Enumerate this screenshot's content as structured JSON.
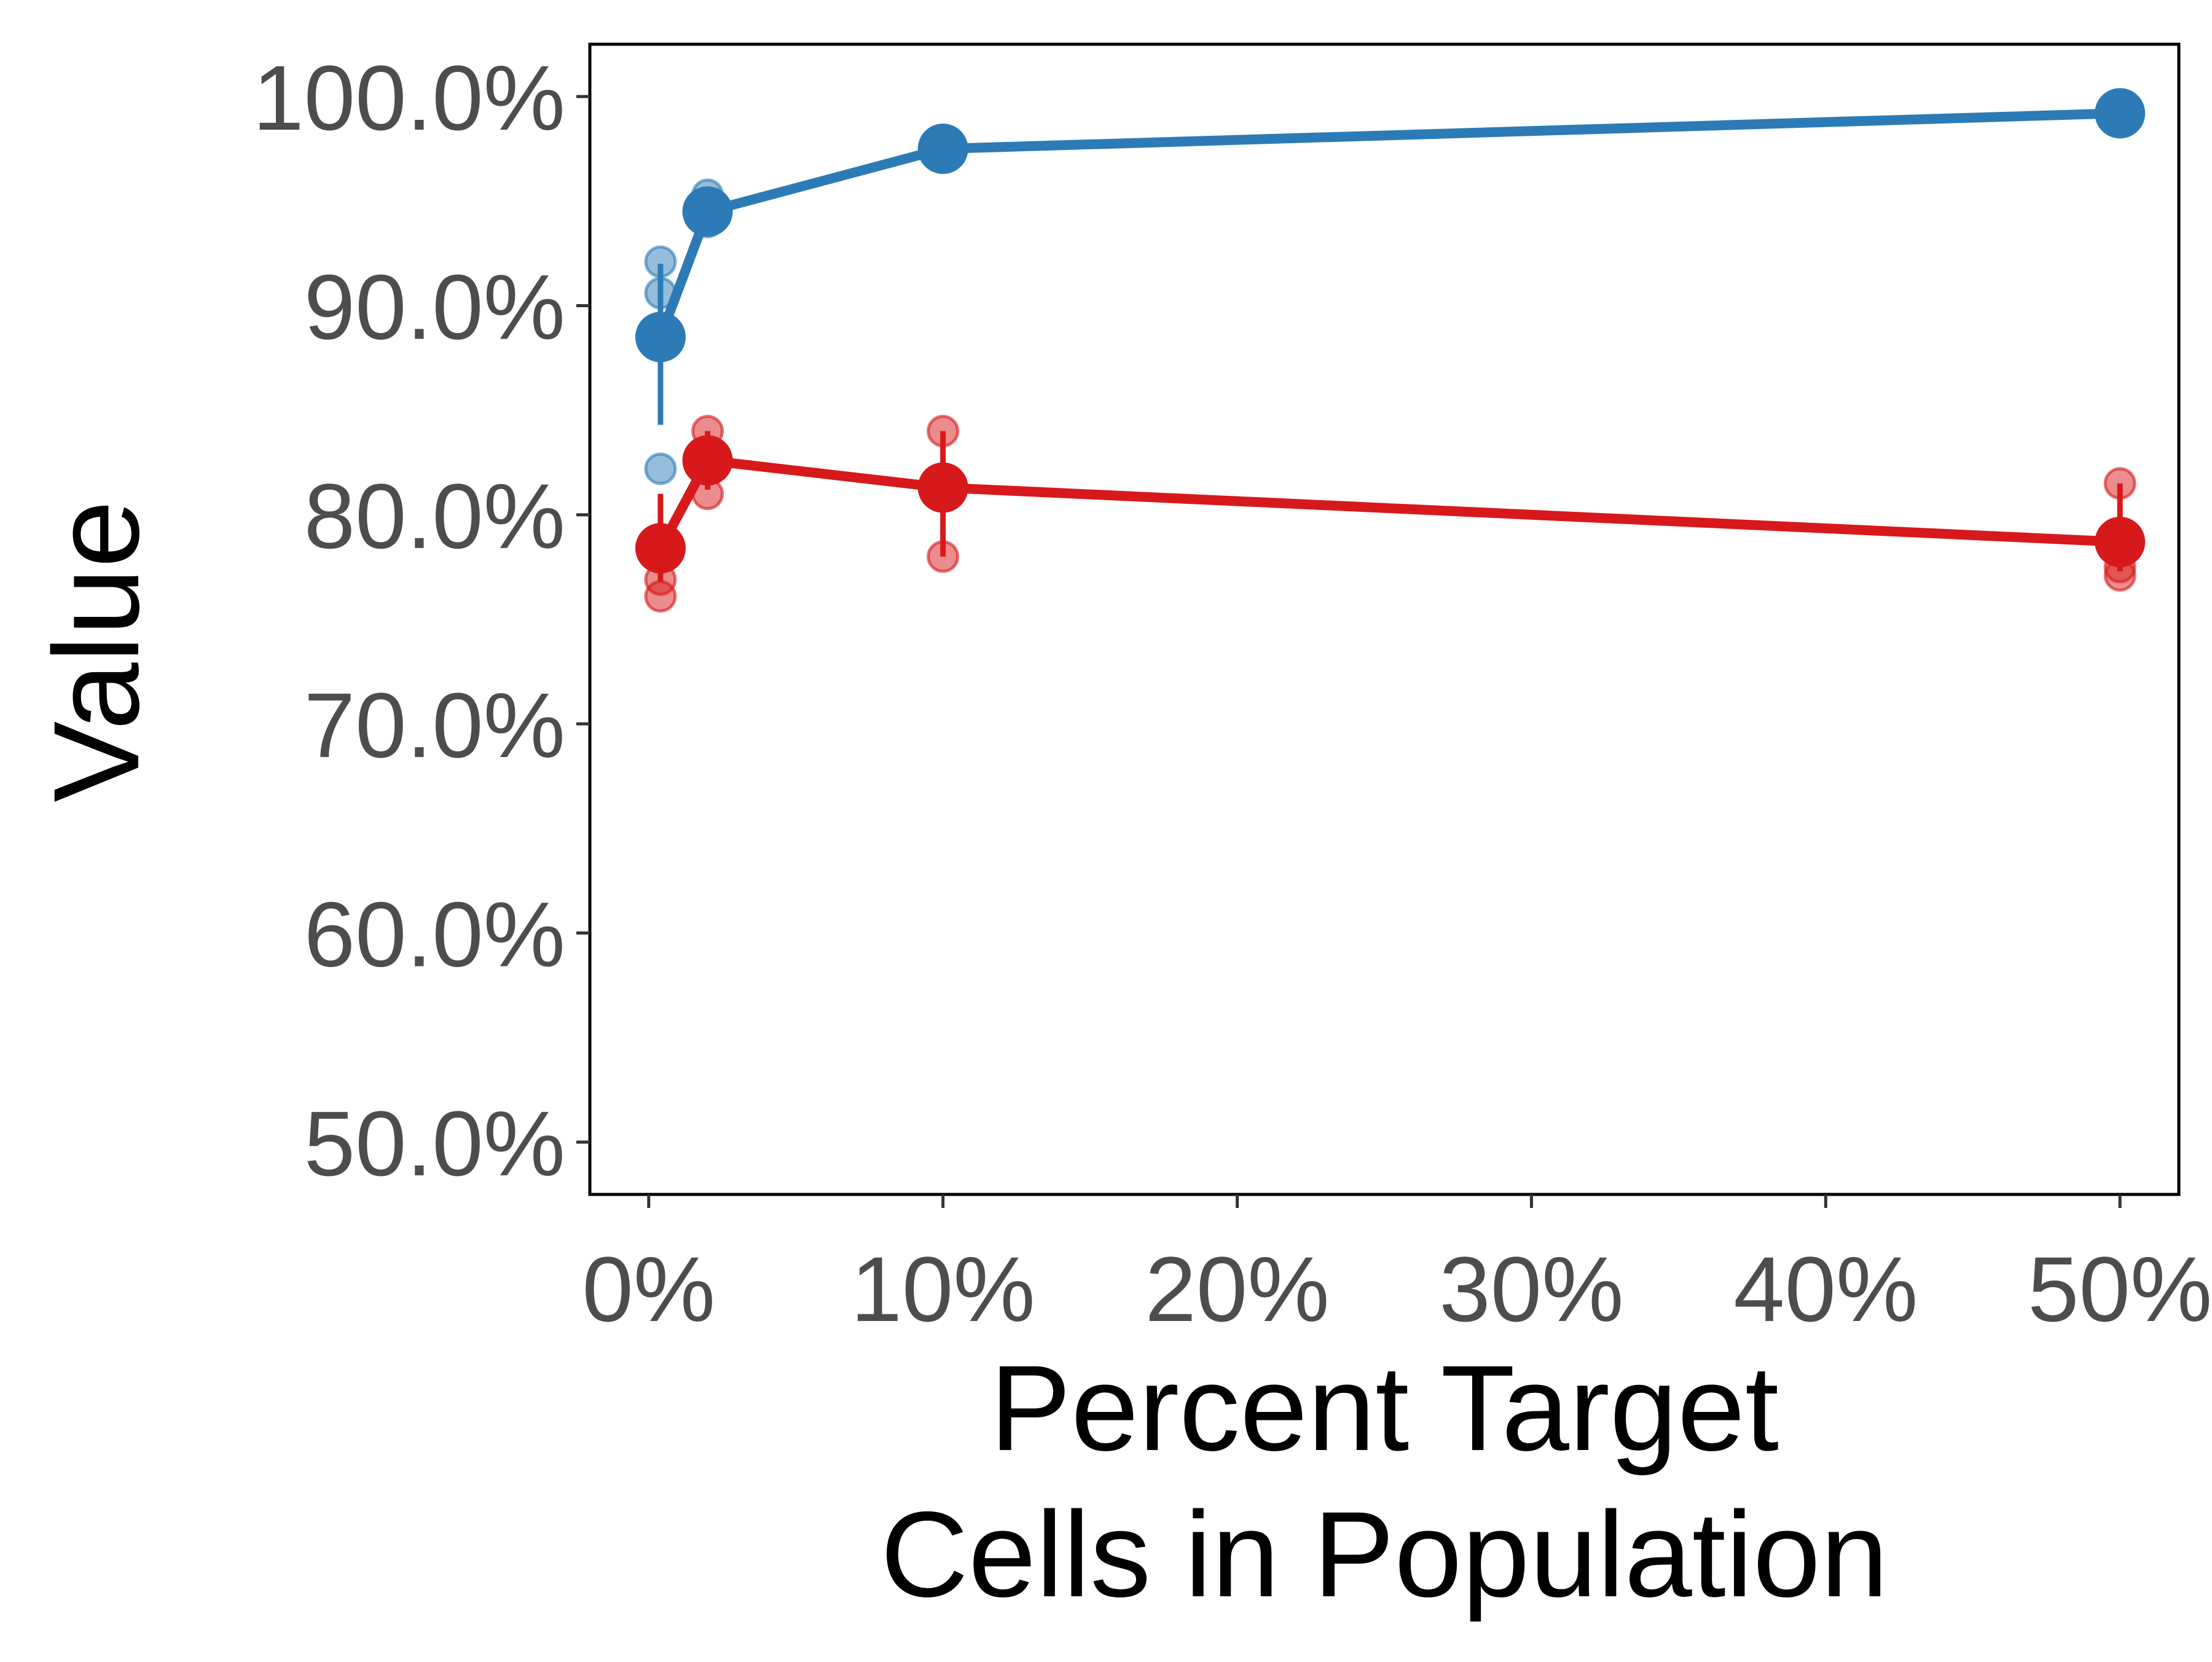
{
  "chart_data": {
    "type": "line",
    "xlabel": [
      "Percent Target",
      "Cells in Population"
    ],
    "ylabel": "Value",
    "xlim": [
      -0.02,
      0.52
    ],
    "ylim": [
      0.475,
      1.025
    ],
    "x_ticks": [
      0,
      0.1,
      0.2,
      0.3,
      0.4,
      0.5
    ],
    "x_tick_labels": [
      "0%",
      "10%",
      "20%",
      "30%",
      "40%",
      "50%"
    ],
    "y_ticks": [
      0.5,
      0.6,
      0.7,
      0.8,
      0.9,
      1.0
    ],
    "y_tick_labels": [
      "50.0%",
      "60.0%",
      "70.0%",
      "80.0%",
      "90.0%",
      "100.0%"
    ],
    "grid": false,
    "legend": "none",
    "series": [
      {
        "color": "#2c7bb6",
        "x": [
          0.004,
          0.02,
          0.1,
          0.5
        ],
        "y": [
          0.885,
          0.945,
          0.975,
          0.992
        ],
        "error_low": [
          0.843,
          0.935,
          0.975,
          0.992
        ],
        "error_high": [
          0.92,
          0.955,
          0.975,
          0.992
        ],
        "replicates": [
          {
            "x": 0.004,
            "y": [
              0.921,
              0.906,
              0.822
            ]
          },
          {
            "x": 0.02,
            "y": [
              0.953,
              0.948,
              0.94
            ]
          },
          {
            "x": 0.1,
            "y": [
              0.976
            ]
          },
          {
            "x": 0.5,
            "y": [
              0.992
            ]
          }
        ]
      },
      {
        "color": "#d7191c",
        "x": [
          0.004,
          0.02,
          0.1,
          0.5
        ],
        "y": [
          0.784,
          0.826,
          0.813,
          0.787
        ],
        "error_low": [
          0.768,
          0.812,
          0.78,
          0.773
        ],
        "error_high": [
          0.81,
          0.84,
          0.84,
          0.815
        ],
        "replicates": [
          {
            "x": 0.004,
            "y": [
              0.769,
              0.761
            ]
          },
          {
            "x": 0.02,
            "y": [
              0.84,
              0.81
            ]
          },
          {
            "x": 0.1,
            "y": [
              0.84,
              0.78
            ]
          },
          {
            "x": 0.5,
            "y": [
              0.815,
              0.775,
              0.771
            ]
          }
        ]
      }
    ]
  }
}
